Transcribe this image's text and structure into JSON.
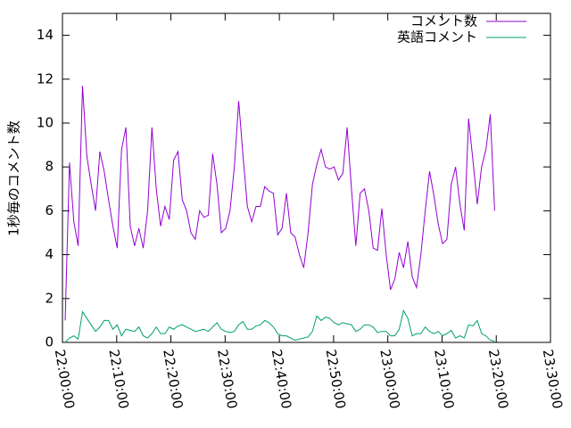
{
  "chart_data": {
    "type": "line",
    "ylabel": "1秒毎のコメント数",
    "xlim": [
      "22:00:00",
      "23:30:00"
    ],
    "xticks": [
      "22:00:00",
      "22:10:00",
      "22:20:00",
      "22:30:00",
      "22:40:00",
      "22:50:00",
      "23:00:00",
      "23:10:00",
      "23:20:00",
      "23:30:00"
    ],
    "ylim": [
      0,
      15
    ],
    "yticks": [
      0,
      2,
      4,
      6,
      8,
      10,
      12,
      14
    ],
    "legend": "top-right",
    "x": [
      "22:00:30",
      "22:01:18",
      "22:02:06",
      "22:02:54",
      "22:03:42",
      "22:04:30",
      "22:05:18",
      "22:06:06",
      "22:06:54",
      "22:07:42",
      "22:08:30",
      "22:09:18",
      "22:10:06",
      "22:10:54",
      "22:11:42",
      "22:12:30",
      "22:13:18",
      "22:14:06",
      "22:14:54",
      "22:15:42",
      "22:16:30",
      "22:17:18",
      "22:18:06",
      "22:18:54",
      "22:19:42",
      "22:20:30",
      "22:21:18",
      "22:22:06",
      "22:22:54",
      "22:23:42",
      "22:24:30",
      "22:25:18",
      "22:26:06",
      "22:26:54",
      "22:27:42",
      "22:28:30",
      "22:29:18",
      "22:30:06",
      "22:30:54",
      "22:31:42",
      "22:32:30",
      "22:33:18",
      "22:34:06",
      "22:34:54",
      "22:35:42",
      "22:36:30",
      "22:37:18",
      "22:38:06",
      "22:38:54",
      "22:39:42",
      "22:40:30",
      "22:41:18",
      "22:42:06",
      "22:42:54",
      "22:43:42",
      "22:44:30",
      "22:45:18",
      "22:46:06",
      "22:46:54",
      "22:47:42",
      "22:48:30",
      "22:49:18",
      "22:50:06",
      "22:50:54",
      "22:51:42",
      "22:52:30",
      "22:53:18",
      "22:54:06",
      "22:54:54",
      "22:55:42",
      "22:56:30",
      "22:57:18",
      "22:58:06",
      "22:58:54",
      "22:59:42",
      "23:00:30",
      "23:01:18",
      "23:02:06",
      "23:02:54",
      "23:03:42",
      "23:04:30",
      "23:05:18",
      "23:06:06",
      "23:06:54",
      "23:07:42",
      "23:08:30",
      "23:09:18",
      "23:10:06",
      "23:10:54",
      "23:11:42",
      "23:12:30",
      "23:13:18",
      "23:14:06",
      "23:14:54",
      "23:15:42",
      "23:16:30",
      "23:17:18",
      "23:18:06",
      "23:18:54",
      "23:19:42"
    ],
    "series": [
      {
        "name": "コメント数",
        "color": "#9400d3",
        "values": [
          1.0,
          8.2,
          5.5,
          4.4,
          11.7,
          8.5,
          7.2,
          6.0,
          8.7,
          7.8,
          6.5,
          5.3,
          4.3,
          8.8,
          9.8,
          5.3,
          4.4,
          5.2,
          4.3,
          6.0,
          9.8,
          7.0,
          5.3,
          6.2,
          5.6,
          8.3,
          8.7,
          6.5,
          6.0,
          5.0,
          4.7,
          6.0,
          5.7,
          5.8,
          8.6,
          7.2,
          5.0,
          5.2,
          6.0,
          8.0,
          11.0,
          8.5,
          6.2,
          5.5,
          6.2,
          6.2,
          7.1,
          6.9,
          6.8,
          4.9,
          5.2,
          6.8,
          5.0,
          4.8,
          4.0,
          3.4,
          5.0,
          7.2,
          8.1,
          8.8,
          8.0,
          7.9,
          8.0,
          7.4,
          7.7,
          9.8,
          7.0,
          4.4,
          6.8,
          7.0,
          6.0,
          4.3,
          4.2,
          6.1,
          4.0,
          2.4,
          2.9,
          4.1,
          3.4,
          4.6,
          3.0,
          2.5,
          4.0,
          6.0,
          7.8,
          6.7,
          5.4,
          4.5,
          4.7,
          7.2,
          8.0,
          6.3,
          5.1,
          10.2,
          8.3,
          6.3,
          8.0,
          8.8,
          10.4,
          6.0
        ]
      },
      {
        "name": "英語コメント",
        "color": "#009e73",
        "values": [
          0.0,
          0.2,
          0.3,
          0.15,
          1.4,
          1.1,
          0.8,
          0.5,
          0.7,
          1.0,
          1.0,
          0.6,
          0.8,
          0.3,
          0.6,
          0.55,
          0.5,
          0.7,
          0.3,
          0.2,
          0.4,
          0.7,
          0.4,
          0.4,
          0.7,
          0.6,
          0.75,
          0.8,
          0.7,
          0.6,
          0.5,
          0.55,
          0.6,
          0.5,
          0.7,
          0.9,
          0.6,
          0.5,
          0.45,
          0.5,
          0.8,
          0.95,
          0.6,
          0.6,
          0.75,
          0.8,
          1.0,
          0.9,
          0.7,
          0.4,
          0.3,
          0.3,
          0.2,
          0.1,
          0.15,
          0.2,
          0.25,
          0.5,
          1.2,
          1.0,
          1.15,
          1.1,
          0.9,
          0.8,
          0.9,
          0.85,
          0.8,
          0.5,
          0.6,
          0.8,
          0.8,
          0.7,
          0.45,
          0.5,
          0.5,
          0.3,
          0.3,
          0.6,
          1.45,
          1.1,
          0.3,
          0.4,
          0.4,
          0.7,
          0.5,
          0.4,
          0.5,
          0.3,
          0.4,
          0.55,
          0.2,
          0.3,
          0.2,
          0.8,
          0.75,
          1.0,
          0.4,
          0.3,
          0.1,
          0.05
        ]
      }
    ]
  }
}
